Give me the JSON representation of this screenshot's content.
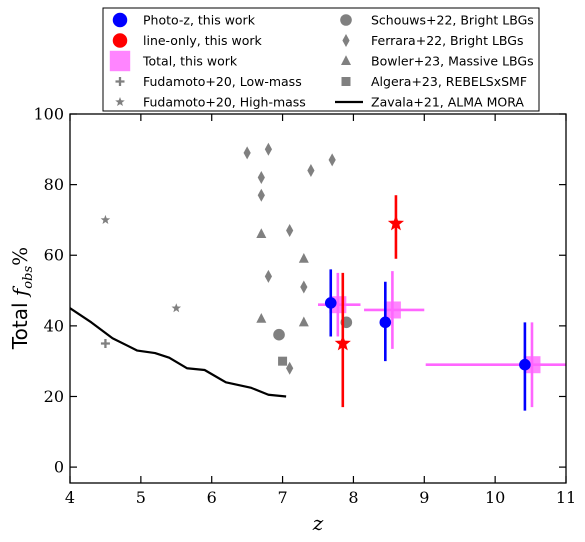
{
  "chart_data": {
    "type": "scatter",
    "title": "",
    "xlabel": "z",
    "ylabel": "Total f_obs%",
    "ylabel_parts": {
      "prefix": "Total ",
      "sym": "f",
      "sub": "obs",
      "suffix": "%"
    },
    "xlim": [
      4,
      11
    ],
    "ylim": [
      -4.5,
      100
    ],
    "xticks": [
      4,
      5,
      6,
      7,
      8,
      9,
      10,
      11
    ],
    "yticks": [
      0,
      20,
      40,
      60,
      80,
      100
    ],
    "grid": false,
    "legend_placement": "top-center",
    "colors": {
      "photoz": "#0000ff",
      "lineonly": "#ff0000",
      "total": "#ff66ff",
      "literature": "#808080",
      "zavala": "#000000"
    },
    "legend": {
      "left": [
        {
          "label": "Photo-z, this work",
          "marker": "circle",
          "color": "#0000ff"
        },
        {
          "label": "line-only, this work",
          "marker": "circle",
          "color": "#ff0000"
        },
        {
          "label": "Total, this work",
          "marker": "bigsquare",
          "color": "#ff66ff"
        },
        {
          "label": "Fudamoto+20, Low-mass",
          "marker": "plus",
          "color": "#808080"
        },
        {
          "label": "Fudamoto+20, High-mass",
          "marker": "star",
          "color": "#808080"
        }
      ],
      "right": [
        {
          "label": "Schouws+22, Bright LBGs",
          "marker": "circle",
          "color": "#808080"
        },
        {
          "label": "Ferrara+22, Bright LBGs",
          "marker": "diamond",
          "color": "#808080"
        },
        {
          "label": "Bowler+23, Massive LBGs",
          "marker": "triangle",
          "color": "#808080"
        },
        {
          "label": "Algera+23, REBELSxSMF",
          "marker": "square",
          "color": "#808080"
        },
        {
          "label": "Zavala+21, ALMA MORA",
          "marker": "line",
          "color": "#000000"
        }
      ]
    },
    "series": [
      {
        "name": "Photo-z, this work",
        "marker": "circle",
        "color": "#0000ff",
        "points": [
          {
            "x": 7.68,
            "y": 46.5,
            "yerr": [
              9.5,
              9.5
            ]
          },
          {
            "x": 8.45,
            "y": 41,
            "yerr": [
              11,
              11.5
            ]
          },
          {
            "x": 10.42,
            "y": 29,
            "yerr": [
              13,
              12
            ]
          }
        ]
      },
      {
        "name": "line-only, this work",
        "marker": "star",
        "color": "#ff0000",
        "points": [
          {
            "x": 7.85,
            "y": 35,
            "yerr": [
              18,
              20
            ]
          },
          {
            "x": 8.6,
            "y": 69,
            "yerr": [
              10,
              8
            ]
          }
        ]
      },
      {
        "name": "Total, this work",
        "marker": "bigsquare",
        "color": "#ff66ff",
        "points": [
          {
            "x": 7.78,
            "y": 46,
            "xerr": [
              0.28,
              0.32
            ],
            "yerr": [
              9,
              9
            ]
          },
          {
            "x": 8.55,
            "y": 44.5,
            "xerr": [
              0.4,
              0.45
            ],
            "yerr": [
              11,
              11
            ]
          },
          {
            "x": 10.52,
            "y": 29,
            "xerr": [
              1.5,
              0.48
            ],
            "yerr": [
              12,
              12
            ]
          }
        ]
      },
      {
        "name": "Fudamoto+20, Low-mass",
        "marker": "plus",
        "color": "#808080",
        "points": [
          {
            "x": 4.5,
            "y": 35
          }
        ]
      },
      {
        "name": "Fudamoto+20, High-mass",
        "marker": "star",
        "color": "#808080",
        "points": [
          {
            "x": 4.5,
            "y": 70
          },
          {
            "x": 5.5,
            "y": 45
          }
        ]
      },
      {
        "name": "Schouws+22, Bright LBGs",
        "marker": "circle",
        "color": "#808080",
        "points": [
          {
            "x": 6.95,
            "y": 37.5
          },
          {
            "x": 7.9,
            "y": 41
          }
        ]
      },
      {
        "name": "Ferrara+22, Bright LBGs",
        "marker": "diamond",
        "color": "#808080",
        "points": [
          {
            "x": 6.5,
            "y": 89
          },
          {
            "x": 6.8,
            "y": 90
          },
          {
            "x": 6.7,
            "y": 82
          },
          {
            "x": 6.7,
            "y": 77
          },
          {
            "x": 7.4,
            "y": 84
          },
          {
            "x": 7.7,
            "y": 87
          },
          {
            "x": 7.1,
            "y": 67
          },
          {
            "x": 6.8,
            "y": 54
          },
          {
            "x": 7.3,
            "y": 51
          },
          {
            "x": 7.1,
            "y": 28
          }
        ]
      },
      {
        "name": "Bowler+23, Massive LBGs",
        "marker": "triangle",
        "color": "#808080",
        "points": [
          {
            "x": 6.7,
            "y": 66
          },
          {
            "x": 7.3,
            "y": 59
          },
          {
            "x": 6.7,
            "y": 42
          },
          {
            "x": 7.3,
            "y": 41
          }
        ]
      },
      {
        "name": "Algera+23, REBELSxSMF",
        "marker": "square",
        "color": "#808080",
        "points": [
          {
            "x": 7.0,
            "y": 30
          }
        ]
      },
      {
        "name": "Zavala+21, ALMA MORA",
        "marker": "line",
        "color": "#000000",
        "points": [
          {
            "x": 4.0,
            "y": 45
          },
          {
            "x": 4.3,
            "y": 41
          },
          {
            "x": 4.6,
            "y": 36.5
          },
          {
            "x": 4.95,
            "y": 33
          },
          {
            "x": 5.2,
            "y": 32.3
          },
          {
            "x": 5.4,
            "y": 31
          },
          {
            "x": 5.65,
            "y": 28
          },
          {
            "x": 5.9,
            "y": 27.5
          },
          {
            "x": 6.2,
            "y": 24
          },
          {
            "x": 6.55,
            "y": 22.5
          },
          {
            "x": 6.8,
            "y": 20.5
          },
          {
            "x": 7.05,
            "y": 20
          }
        ]
      }
    ]
  }
}
